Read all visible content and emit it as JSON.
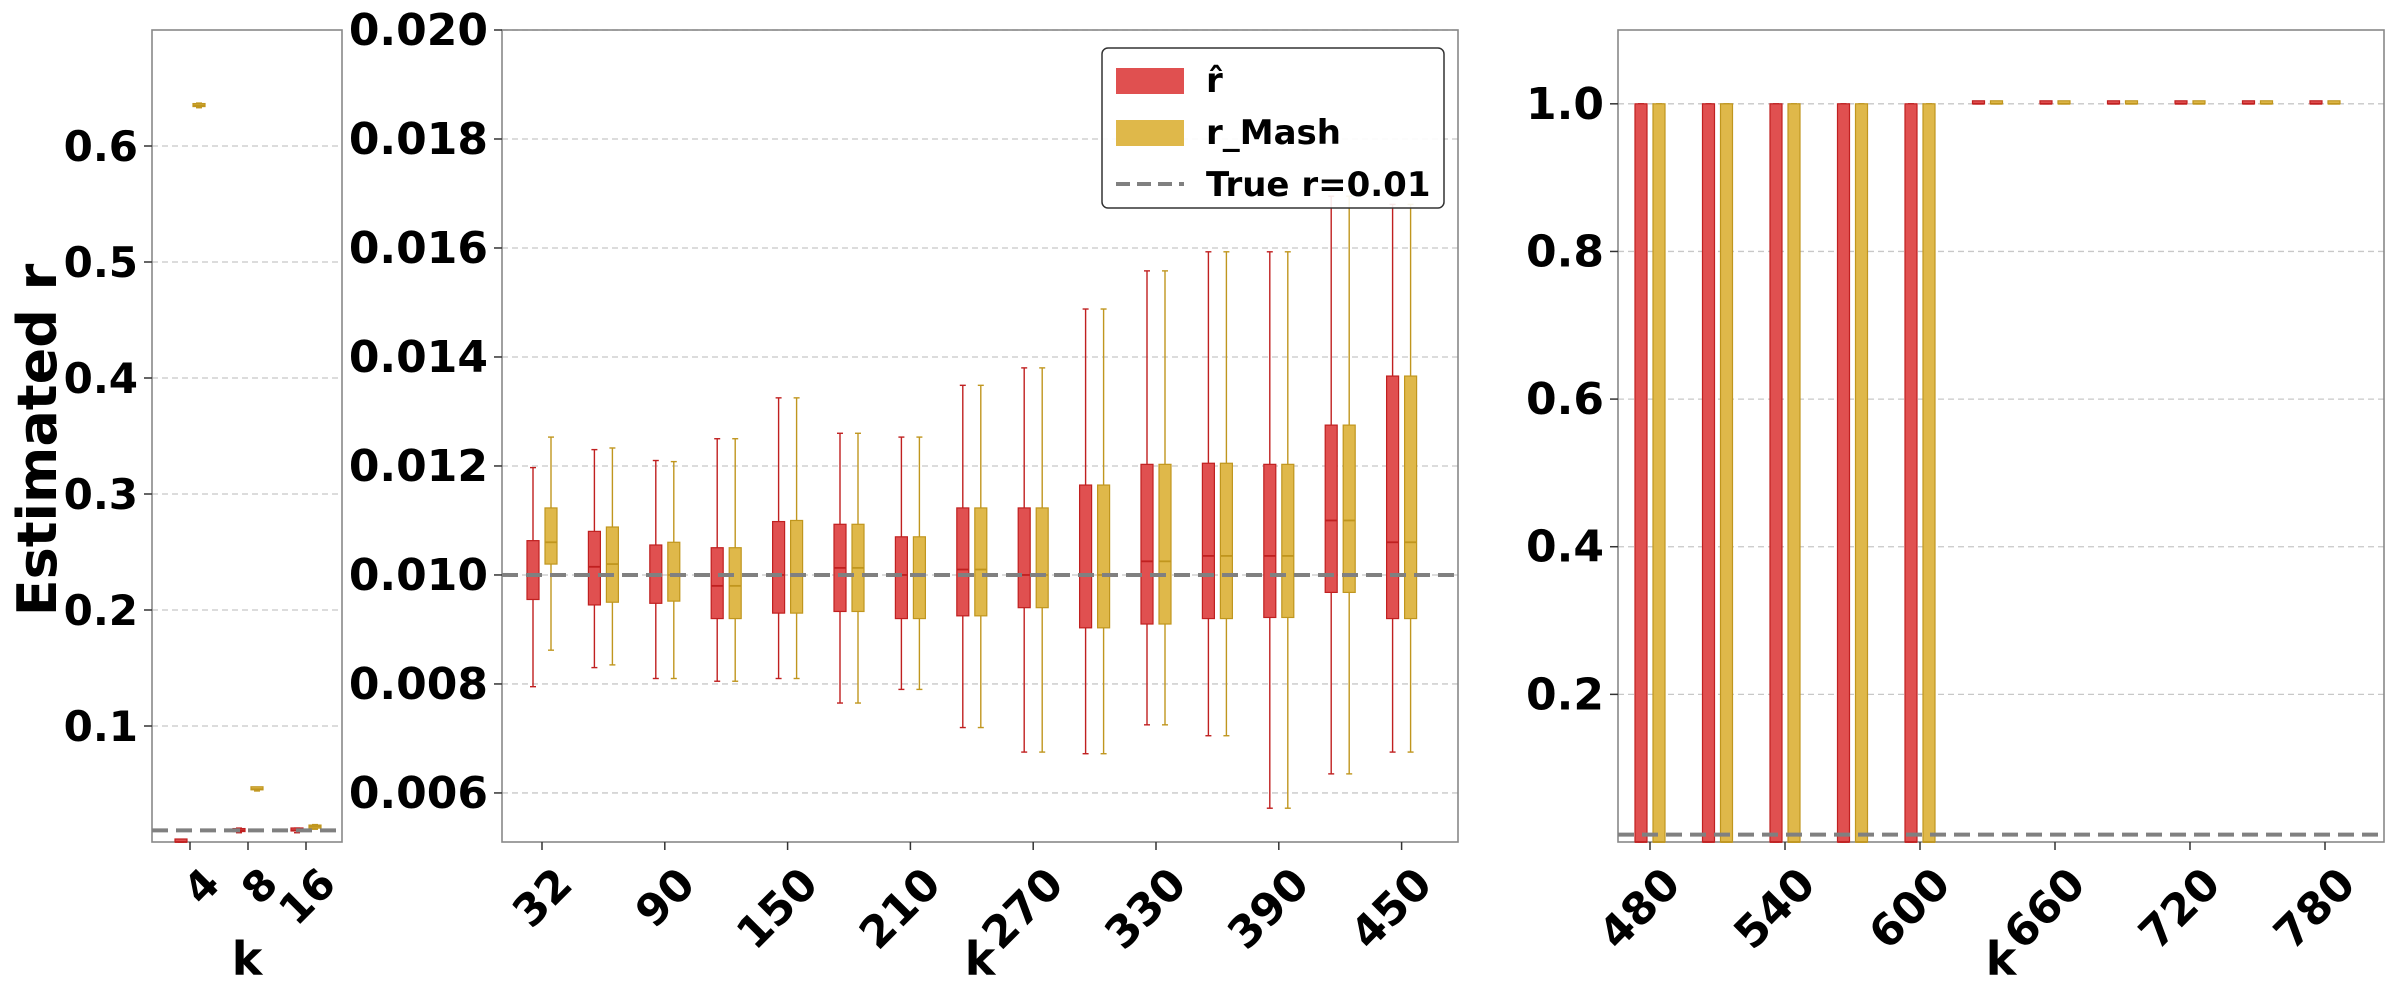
{
  "colors": {
    "r_hat": "#e05050",
    "r_hat_edge": "#c02020",
    "r_mash": "#dfb84a",
    "r_mash_edge": "#c0961e",
    "true_line": "#808080",
    "grid": "#c8c8c8"
  },
  "chart_data": [
    {
      "type": "box",
      "panel": "left",
      "ylabel": "Estimated r",
      "xlabel": "k",
      "ylim": [
        0.0,
        0.7
      ],
      "yticks": [
        "0.1",
        "0.2",
        "0.3",
        "0.4",
        "0.5",
        "0.6"
      ],
      "ytick_values": [
        0.1,
        0.2,
        0.3,
        0.4,
        0.5,
        0.6
      ],
      "categories": [
        "4",
        "8",
        "16"
      ],
      "true_r": 0.01,
      "grid": true,
      "series": [
        {
          "name": "r̂",
          "boxes": [
            {
              "k": "4",
              "whislo": 0.0,
              "q1": 0.0,
              "med": 0.0,
              "q3": 0.0,
              "whishi": 0.0
            },
            {
              "k": "8",
              "whislo": 0.008,
              "q1": 0.009,
              "med": 0.01,
              "q3": 0.011,
              "whishi": 0.012
            },
            {
              "k": "16",
              "whislo": 0.008,
              "q1": 0.0095,
              "med": 0.01,
              "q3": 0.011,
              "whishi": 0.012
            }
          ]
        },
        {
          "name": "r_Mash",
          "boxes": [
            {
              "k": "4",
              "whislo": 0.633,
              "q1": 0.634,
              "med": 0.635,
              "q3": 0.636,
              "whishi": 0.637
            },
            {
              "k": "8",
              "whislo": 0.044,
              "q1": 0.045,
              "med": 0.0455,
              "q3": 0.046,
              "whishi": 0.047
            },
            {
              "k": "16",
              "whislo": 0.011,
              "q1": 0.012,
              "med": 0.0135,
              "q3": 0.0145,
              "whishi": 0.015
            }
          ]
        }
      ]
    },
    {
      "type": "box",
      "panel": "middle",
      "xlabel": "k",
      "ylim": [
        0.0051,
        0.02
      ],
      "yticks": [
        "0.006",
        "0.008",
        "0.010",
        "0.012",
        "0.014",
        "0.016",
        "0.018",
        "0.020"
      ],
      "ytick_values": [
        0.006,
        0.008,
        0.01,
        0.012,
        0.014,
        0.016,
        0.018,
        0.02
      ],
      "categories": [
        "32",
        "60",
        "90",
        "120",
        "150",
        "180",
        "210",
        "240",
        "270",
        "300",
        "330",
        "360",
        "390",
        "420",
        "450"
      ],
      "xtick_labels": [
        "32",
        "90",
        "150",
        "210",
        "270",
        "330",
        "390",
        "450"
      ],
      "true_r": 0.01,
      "grid": true,
      "legend": {
        "placement": "top-right",
        "entries": [
          {
            "label": "r̂",
            "kind": "patch",
            "color_key": "r_hat"
          },
          {
            "label": "r_Mash",
            "kind": "patch",
            "color_key": "r_mash"
          },
          {
            "label": "True r=0.01",
            "kind": "dashed-line",
            "color_key": "true_line"
          }
        ]
      },
      "series": [
        {
          "name": "r̂",
          "boxes": [
            {
              "k": "32",
              "whislo": 0.00795,
              "q1": 0.00955,
              "med": 0.01,
              "q3": 0.01063,
              "whishi": 0.01197
            },
            {
              "k": "60",
              "whislo": 0.0083,
              "q1": 0.00945,
              "med": 0.01015,
              "q3": 0.0108,
              "whishi": 0.0123
            },
            {
              "k": "90",
              "whislo": 0.0081,
              "q1": 0.00948,
              "med": 0.01,
              "q3": 0.01055,
              "whishi": 0.0121
            },
            {
              "k": "120",
              "whislo": 0.00805,
              "q1": 0.0092,
              "med": 0.0098,
              "q3": 0.0105,
              "whishi": 0.0125
            },
            {
              "k": "150",
              "whislo": 0.0081,
              "q1": 0.0093,
              "med": 0.01,
              "q3": 0.01098,
              "whishi": 0.01325
            },
            {
              "k": "180",
              "whislo": 0.00765,
              "q1": 0.00933,
              "med": 0.01013,
              "q3": 0.01093,
              "whishi": 0.0126
            },
            {
              "k": "210",
              "whislo": 0.0079,
              "q1": 0.0092,
              "med": 0.01,
              "q3": 0.0107,
              "whishi": 0.01253
            },
            {
              "k": "240",
              "whislo": 0.0072,
              "q1": 0.00925,
              "med": 0.0101,
              "q3": 0.01123,
              "whishi": 0.01348
            },
            {
              "k": "270",
              "whislo": 0.00675,
              "q1": 0.0094,
              "med": 0.01,
              "q3": 0.01123,
              "whishi": 0.0138
            },
            {
              "k": "300",
              "whislo": 0.00672,
              "q1": 0.00903,
              "med": 0.01,
              "q3": 0.01165,
              "whishi": 0.01488
            },
            {
              "k": "330",
              "whislo": 0.00725,
              "q1": 0.0091,
              "med": 0.01025,
              "q3": 0.01203,
              "whishi": 0.01558
            },
            {
              "k": "360",
              "whislo": 0.00705,
              "q1": 0.0092,
              "med": 0.01035,
              "q3": 0.01205,
              "whishi": 0.01593
            },
            {
              "k": "390",
              "whislo": 0.00572,
              "q1": 0.00922,
              "med": 0.01035,
              "q3": 0.01203,
              "whishi": 0.01593
            },
            {
              "k": "420",
              "whislo": 0.00635,
              "q1": 0.00968,
              "med": 0.011,
              "q3": 0.01275,
              "whishi": 0.01695
            },
            {
              "k": "450",
              "whislo": 0.00675,
              "q1": 0.0092,
              "med": 0.0106,
              "q3": 0.01365,
              "whishi": 0.0168
            }
          ]
        },
        {
          "name": "r_Mash",
          "boxes": [
            {
              "k": "32",
              "whislo": 0.00862,
              "q1": 0.0102,
              "med": 0.0106,
              "q3": 0.01123,
              "whishi": 0.01253
            },
            {
              "k": "60",
              "whislo": 0.00835,
              "q1": 0.0095,
              "med": 0.0102,
              "q3": 0.01088,
              "whishi": 0.01233
            },
            {
              "k": "90",
              "whislo": 0.0081,
              "q1": 0.00952,
              "med": 0.01,
              "q3": 0.0106,
              "whishi": 0.01208
            },
            {
              "k": "120",
              "whislo": 0.00805,
              "q1": 0.0092,
              "med": 0.0098,
              "q3": 0.0105,
              "whishi": 0.0125
            },
            {
              "k": "150",
              "whislo": 0.0081,
              "q1": 0.0093,
              "med": 0.01,
              "q3": 0.011,
              "whishi": 0.01325
            },
            {
              "k": "180",
              "whislo": 0.00765,
              "q1": 0.00933,
              "med": 0.01013,
              "q3": 0.01093,
              "whishi": 0.0126
            },
            {
              "k": "210",
              "whislo": 0.0079,
              "q1": 0.0092,
              "med": 0.01,
              "q3": 0.0107,
              "whishi": 0.01253
            },
            {
              "k": "240",
              "whislo": 0.0072,
              "q1": 0.00925,
              "med": 0.0101,
              "q3": 0.01123,
              "whishi": 0.01348
            },
            {
              "k": "270",
              "whislo": 0.00675,
              "q1": 0.0094,
              "med": 0.01,
              "q3": 0.01123,
              "whishi": 0.0138
            },
            {
              "k": "300",
              "whislo": 0.00672,
              "q1": 0.00903,
              "med": 0.01,
              "q3": 0.01165,
              "whishi": 0.01488
            },
            {
              "k": "330",
              "whislo": 0.00725,
              "q1": 0.0091,
              "med": 0.01025,
              "q3": 0.01203,
              "whishi": 0.01558
            },
            {
              "k": "360",
              "whislo": 0.00705,
              "q1": 0.0092,
              "med": 0.01035,
              "q3": 0.01205,
              "whishi": 0.01593
            },
            {
              "k": "390",
              "whislo": 0.00572,
              "q1": 0.00922,
              "med": 0.01035,
              "q3": 0.01203,
              "whishi": 0.01593
            },
            {
              "k": "420",
              "whislo": 0.00635,
              "q1": 0.00968,
              "med": 0.011,
              "q3": 0.01275,
              "whishi": 0.01695
            },
            {
              "k": "450",
              "whislo": 0.00675,
              "q1": 0.0092,
              "med": 0.0106,
              "q3": 0.01365,
              "whishi": 0.0168
            }
          ]
        }
      ]
    },
    {
      "type": "box",
      "panel": "right",
      "xlabel": "k",
      "ylim": [
        0.0,
        1.1
      ],
      "yticks": [
        "0.2",
        "0.4",
        "0.6",
        "0.8",
        "1.0"
      ],
      "ytick_values": [
        0.2,
        0.4,
        0.6,
        0.8,
        1.0
      ],
      "categories": [
        "480",
        "510",
        "540",
        "570",
        "600",
        "630",
        "660",
        "690",
        "720",
        "750",
        "780"
      ],
      "xtick_labels": [
        "480",
        "540",
        "600",
        "660",
        "720",
        "780"
      ],
      "true_r": 0.01,
      "grid": true,
      "series": [
        {
          "name": "r̂",
          "boxes": [
            {
              "k": "480",
              "whislo": 0.0,
              "q1": 0.0,
              "med": 0.0,
              "q3": 1.0,
              "whishi": 1.0
            },
            {
              "k": "510",
              "whislo": 0.0,
              "q1": 0.0,
              "med": 0.0,
              "q3": 1.0,
              "whishi": 1.0
            },
            {
              "k": "540",
              "whislo": 0.0,
              "q1": 0.0,
              "med": 0.0,
              "q3": 1.0,
              "whishi": 1.0
            },
            {
              "k": "570",
              "whislo": 0.0,
              "q1": 0.0,
              "med": 0.0,
              "q3": 1.0,
              "whishi": 1.0
            },
            {
              "k": "600",
              "whislo": 0.0,
              "q1": 0.0,
              "med": 0.0,
              "q3": 1.0,
              "whishi": 1.0
            },
            {
              "k": "630",
              "whislo": 1.0,
              "q1": 1.0,
              "med": 1.0,
              "q3": 1.0,
              "whishi": 1.0
            },
            {
              "k": "660",
              "whislo": 1.0,
              "q1": 1.0,
              "med": 1.0,
              "q3": 1.0,
              "whishi": 1.0
            },
            {
              "k": "690",
              "whislo": 1.0,
              "q1": 1.0,
              "med": 1.0,
              "q3": 1.0,
              "whishi": 1.0
            },
            {
              "k": "720",
              "whislo": 1.0,
              "q1": 1.0,
              "med": 1.0,
              "q3": 1.0,
              "whishi": 1.0
            },
            {
              "k": "750",
              "whislo": 1.0,
              "q1": 1.0,
              "med": 1.0,
              "q3": 1.0,
              "whishi": 1.0
            },
            {
              "k": "780",
              "whislo": 1.0,
              "q1": 1.0,
              "med": 1.0,
              "q3": 1.0,
              "whishi": 1.0
            }
          ]
        },
        {
          "name": "r_Mash",
          "boxes": [
            {
              "k": "480",
              "whislo": 0.0,
              "q1": 0.0,
              "med": 0.0,
              "q3": 1.0,
              "whishi": 1.0
            },
            {
              "k": "510",
              "whislo": 0.0,
              "q1": 0.0,
              "med": 0.0,
              "q3": 1.0,
              "whishi": 1.0
            },
            {
              "k": "540",
              "whislo": 0.0,
              "q1": 0.0,
              "med": 0.0,
              "q3": 1.0,
              "whishi": 1.0
            },
            {
              "k": "570",
              "whislo": 0.0,
              "q1": 0.0,
              "med": 0.0,
              "q3": 1.0,
              "whishi": 1.0
            },
            {
              "k": "600",
              "whislo": 0.0,
              "q1": 0.0,
              "med": 0.0,
              "q3": 1.0,
              "whishi": 1.0
            },
            {
              "k": "630",
              "whislo": 1.0,
              "q1": 1.0,
              "med": 1.0,
              "q3": 1.0,
              "whishi": 1.0
            },
            {
              "k": "660",
              "whislo": 1.0,
              "q1": 1.0,
              "med": 1.0,
              "q3": 1.0,
              "whishi": 1.0
            },
            {
              "k": "690",
              "whislo": 1.0,
              "q1": 1.0,
              "med": 1.0,
              "q3": 1.0,
              "whishi": 1.0
            },
            {
              "k": "720",
              "whislo": 1.0,
              "q1": 1.0,
              "med": 1.0,
              "q3": 1.0,
              "whishi": 1.0
            },
            {
              "k": "750",
              "whislo": 1.0,
              "q1": 1.0,
              "med": 1.0,
              "q3": 1.0,
              "whishi": 1.0
            },
            {
              "k": "780",
              "whislo": 1.0,
              "q1": 1.0,
              "med": 1.0,
              "q3": 1.0,
              "whishi": 1.0
            }
          ]
        }
      ]
    }
  ]
}
